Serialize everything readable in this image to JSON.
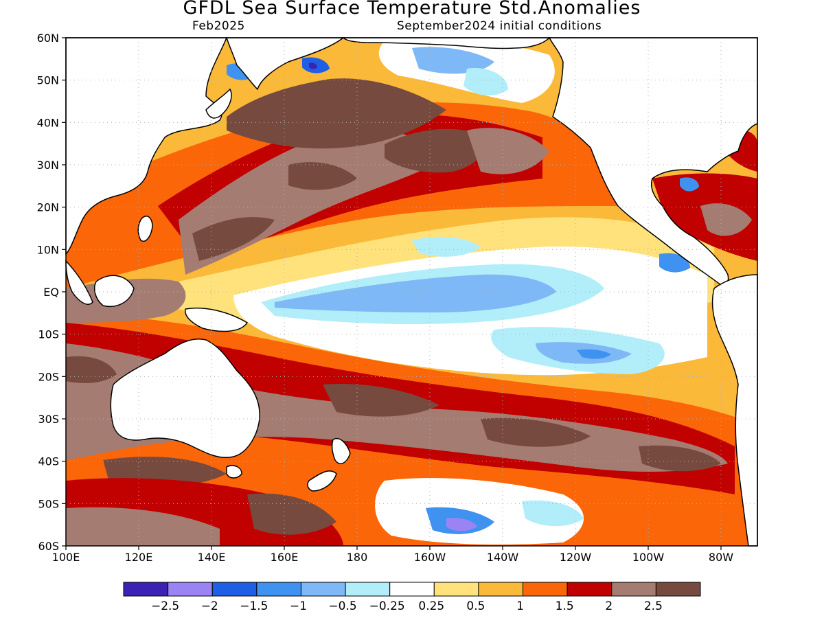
{
  "title": "GFDL Sea Surface Temperature Std.Anomalies",
  "subtitle_left": "Feb2025",
  "subtitle_right": "September2024 initial conditions",
  "map": {
    "lat_range": [
      -60,
      60
    ],
    "lon_range": [
      100,
      290
    ],
    "gridlines": true,
    "y_ticks": [
      {
        "lat": 60,
        "label": "60N"
      },
      {
        "lat": 50,
        "label": "50N"
      },
      {
        "lat": 40,
        "label": "40N"
      },
      {
        "lat": 30,
        "label": "30N"
      },
      {
        "lat": 20,
        "label": "20N"
      },
      {
        "lat": 10,
        "label": "10N"
      },
      {
        "lat": 0,
        "label": "EQ"
      },
      {
        "lat": -10,
        "label": "10S"
      },
      {
        "lat": -20,
        "label": "20S"
      },
      {
        "lat": -30,
        "label": "30S"
      },
      {
        "lat": -40,
        "label": "40S"
      },
      {
        "lat": -50,
        "label": "50S"
      },
      {
        "lat": -60,
        "label": "60S"
      }
    ],
    "x_ticks": [
      {
        "lon": 100,
        "label": "100E"
      },
      {
        "lon": 120,
        "label": "120E"
      },
      {
        "lon": 140,
        "label": "140E"
      },
      {
        "lon": 160,
        "label": "160E"
      },
      {
        "lon": 180,
        "label": "180"
      },
      {
        "lon": 200,
        "label": "160W"
      },
      {
        "lon": 220,
        "label": "140W"
      },
      {
        "lon": 240,
        "label": "120W"
      },
      {
        "lon": 260,
        "label": "100W"
      },
      {
        "lon": 280,
        "label": "80W"
      }
    ]
  },
  "colorbar": {
    "colors": [
      "#3b22b5",
      "#9a84f4",
      "#1f5fe6",
      "#3f92ef",
      "#7eb8f6",
      "#b2eefa",
      "#ffffff",
      "#ffe27c",
      "#fbb93a",
      "#fb6608",
      "#c10000",
      "#a57c72",
      "#774a3f"
    ],
    "labels": [
      "-2.5",
      "-2",
      "-1.5",
      "-1",
      "-0.5",
      "-0.25",
      "0.25",
      "0.5",
      "1",
      "1.5",
      "2",
      "2.5"
    ]
  },
  "palette": {
    "land": "#ffffff",
    "coast": "#000000",
    "grid": "#b0b0b0"
  }
}
